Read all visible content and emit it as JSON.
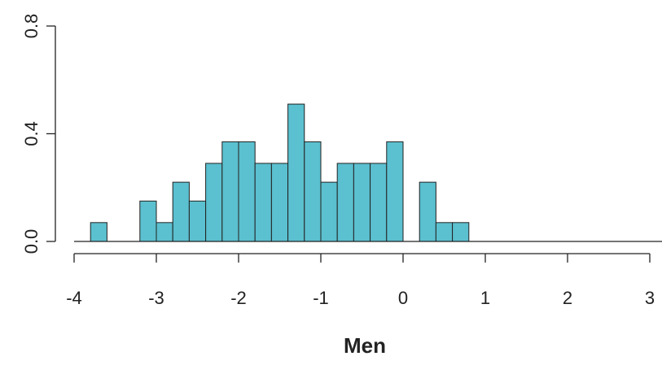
{
  "chart_data": {
    "type": "histogram",
    "xlabel": "Men",
    "bins": [
      -3.8,
      -3.6,
      -3.4,
      -3.2,
      -3.0,
      -2.8,
      -2.6,
      -2.4,
      -2.2,
      -2.0,
      -1.8,
      -1.6,
      -1.4,
      -1.2,
      -1.0,
      -0.8,
      -0.6,
      -0.4,
      -0.2,
      0.0,
      0.2,
      0.4,
      0.6,
      0.8
    ],
    "values": [
      0.07,
      0,
      0,
      0.15,
      0.07,
      0.22,
      0.15,
      0.29,
      0.37,
      0.37,
      0.29,
      0.29,
      0.51,
      0.37,
      0.22,
      0.29,
      0.29,
      0.29,
      0.37,
      0,
      0.22,
      0.07,
      0.07
    ],
    "color": "#5bc0cf",
    "xlim": [
      -4,
      3
    ],
    "xticks": [
      -4,
      -3,
      -2,
      -1,
      0,
      1,
      2,
      3
    ],
    "ylim": [
      0,
      0.8
    ],
    "yticks": [
      {
        "value": 0,
        "label": "0.0"
      },
      0.4,
      0.8
    ]
  }
}
